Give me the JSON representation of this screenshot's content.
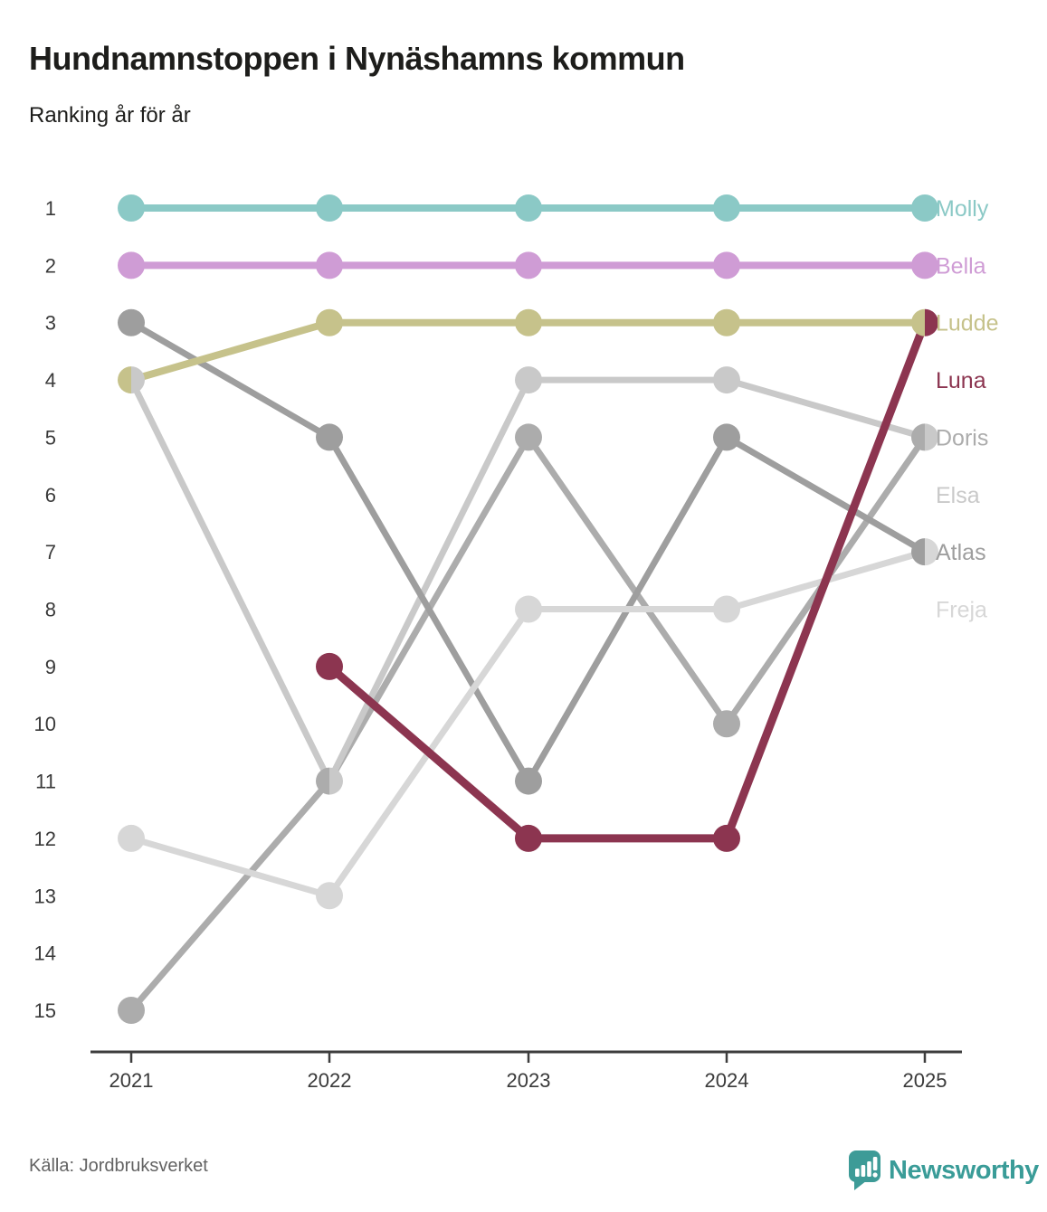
{
  "header": {
    "title": "Hundnamnstoppen i Nynäshamns kommun",
    "subtitle": "Ranking år för år"
  },
  "footer": {
    "source": "Källa: Jordbruksverket",
    "brand": "Newsworthy",
    "brand_color": "#3a9c98"
  },
  "chart_data": {
    "type": "line",
    "variant": "bump-ranking",
    "title": "Hundnamnstoppen i Nynäshamns kommun",
    "subtitle": "Ranking år för år",
    "x": [
      2021,
      2022,
      2023,
      2024,
      2025
    ],
    "rank_ticks": [
      1,
      2,
      3,
      4,
      5,
      6,
      7,
      8,
      9,
      10,
      11,
      12,
      13,
      14,
      15
    ],
    "ylim": [
      1,
      15
    ],
    "y_inverted": true,
    "grid": false,
    "legend_position": "right-of-last-point",
    "axis_color": "#3d3d3d",
    "tick_text_color": "#3a3a3a",
    "series": [
      {
        "name": "Molly",
        "color": "#8bc9c6",
        "values": [
          1,
          1,
          1,
          1,
          1
        ],
        "label_rank": 1,
        "line_width": 8,
        "muted": false
      },
      {
        "name": "Bella",
        "color": "#cf9cd5",
        "values": [
          2,
          2,
          2,
          2,
          2
        ],
        "label_rank": 2,
        "line_width": 8,
        "muted": false
      },
      {
        "name": "Ludde",
        "color": "#c6c28b",
        "values": [
          4,
          3,
          3,
          3,
          3
        ],
        "label_rank": 3,
        "line_width": 8,
        "muted": false
      },
      {
        "name": "Luna",
        "color": "#8c3550",
        "values": [
          null,
          9,
          12,
          12,
          3
        ],
        "label_rank": 4,
        "line_width": 9,
        "muted": false
      },
      {
        "name": "Doris",
        "color": "#acacac",
        "values": [
          15,
          11,
          5,
          10,
          5
        ],
        "label_rank": 5,
        "line_width": 7,
        "muted": true
      },
      {
        "name": "Elsa",
        "color": "#c9c9c9",
        "values": [
          4,
          11,
          4,
          4,
          5
        ],
        "label_rank": 6,
        "line_width": 7,
        "muted": true
      },
      {
        "name": "Atlas",
        "color": "#9e9e9e",
        "values": [
          3,
          5,
          11,
          5,
          7
        ],
        "label_rank": 7,
        "line_width": 7,
        "muted": true
      },
      {
        "name": "Freja",
        "color": "#d7d7d7",
        "values": [
          12,
          13,
          8,
          8,
          7
        ],
        "label_rank": 8,
        "line_width": 7,
        "muted": true
      }
    ],
    "ties": [
      {
        "year": 2021,
        "rank": 4,
        "names": [
          "Ludde",
          "Elsa"
        ]
      },
      {
        "year": 2022,
        "rank": 11,
        "names": [
          "Doris",
          "Elsa"
        ]
      },
      {
        "year": 2025,
        "rank": 3,
        "names": [
          "Ludde",
          "Luna"
        ]
      },
      {
        "year": 2025,
        "rank": 5,
        "names": [
          "Doris",
          "Elsa"
        ]
      },
      {
        "year": 2025,
        "rank": 7,
        "names": [
          "Atlas",
          "Freja"
        ]
      }
    ]
  }
}
